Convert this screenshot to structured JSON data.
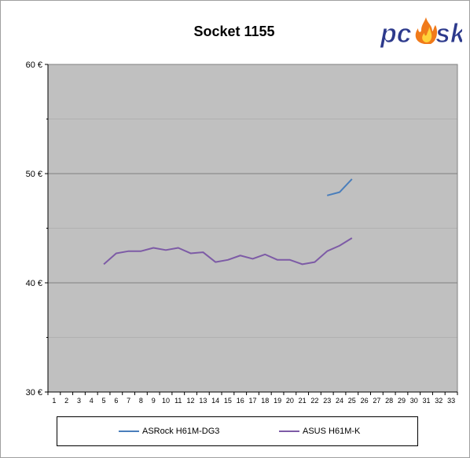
{
  "chart_data": {
    "type": "line",
    "title": "Socket 1155",
    "xlabel": "",
    "ylabel": "",
    "x": [
      1,
      2,
      3,
      4,
      5,
      6,
      7,
      8,
      9,
      10,
      11,
      12,
      13,
      14,
      15,
      16,
      17,
      18,
      19,
      20,
      21,
      22,
      23,
      24,
      25,
      26,
      27,
      28,
      29,
      30,
      31,
      32,
      33
    ],
    "ylim": [
      30,
      60
    ],
    "yticks": [
      30,
      40,
      50,
      60
    ],
    "ytick_labels": [
      "30 €",
      "40 €",
      "50 €",
      "60 €"
    ],
    "grid": true,
    "legend_position": "bottom",
    "series": [
      {
        "name": "ASRock H61M-DG3",
        "color": "#4a7ebb",
        "points": [
          [
            23,
            48.0
          ],
          [
            24,
            48.3
          ],
          [
            25,
            49.5
          ]
        ]
      },
      {
        "name": "ASUS H61M-K",
        "color": "#7d5ba6",
        "points": [
          [
            5,
            41.7
          ],
          [
            6,
            42.7
          ],
          [
            7,
            42.9
          ],
          [
            8,
            42.9
          ],
          [
            9,
            43.2
          ],
          [
            10,
            43.0
          ],
          [
            11,
            43.2
          ],
          [
            12,
            42.7
          ],
          [
            13,
            42.8
          ],
          [
            14,
            41.9
          ],
          [
            15,
            42.1
          ],
          [
            16,
            42.5
          ],
          [
            17,
            42.2
          ],
          [
            18,
            42.6
          ],
          [
            19,
            42.1
          ],
          [
            20,
            42.1
          ],
          [
            21,
            41.7
          ],
          [
            22,
            41.9
          ],
          [
            23,
            42.9
          ],
          [
            24,
            43.4
          ],
          [
            25,
            44.1
          ]
        ]
      }
    ]
  },
  "logo": {
    "text_left": "pc",
    "text_right": "sk",
    "colors": {
      "text": "#2d3a8c",
      "flame_outer": "#f07a1a",
      "flame_inner": "#ffd23a"
    }
  },
  "colors": {
    "plot_bg": "#c0c0c0",
    "gridline": "#808080",
    "axis": "#000000"
  }
}
